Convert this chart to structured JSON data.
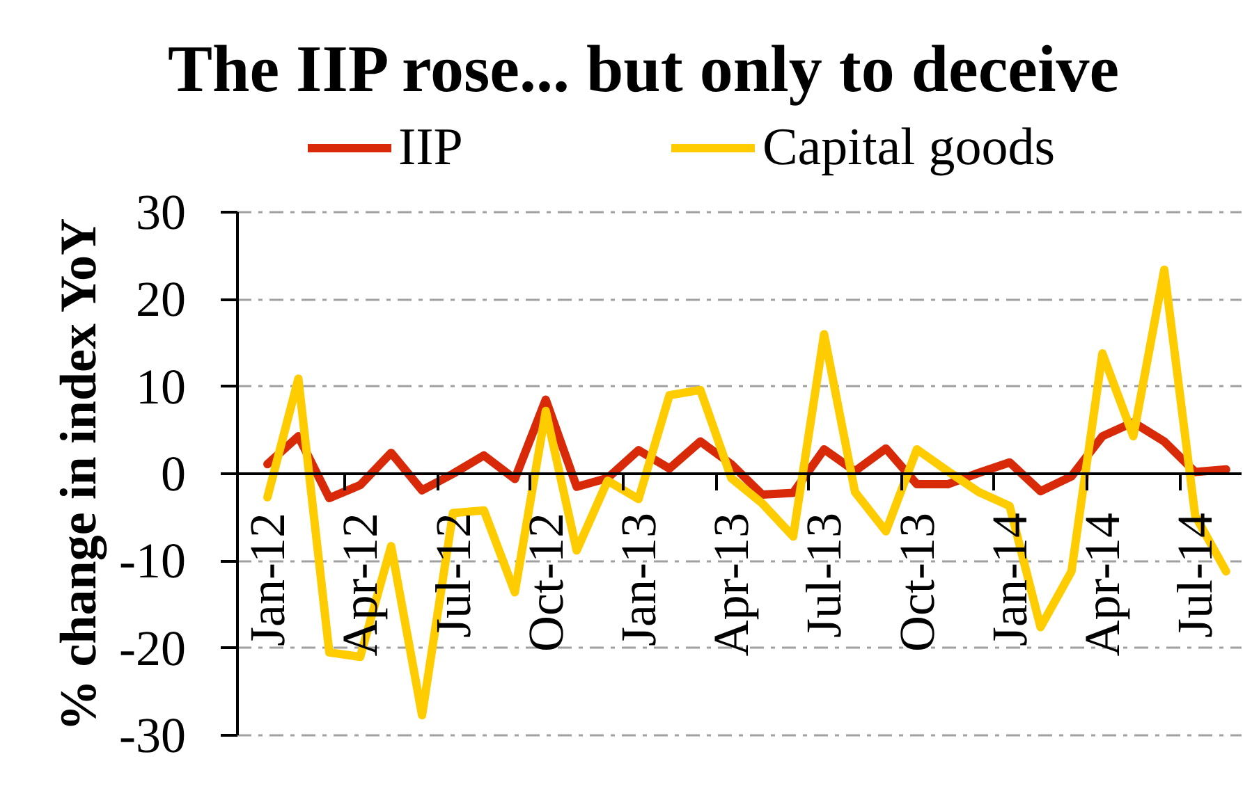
{
  "chart_data": {
    "type": "line",
    "title": "The IIP rose... but only to deceive",
    "ylabel": "% change in index YoY",
    "categories": [
      "Jan-12",
      null,
      null,
      "Apr-12",
      null,
      null,
      "Jul-12",
      null,
      null,
      "Oct-12",
      null,
      null,
      "Jan-13",
      null,
      null,
      "Apr-13",
      null,
      null,
      "Jul-13",
      null,
      null,
      "Oct-13",
      null,
      null,
      "Jan-14",
      null,
      null,
      "Apr-14",
      null,
      null,
      "Jul-14",
      null
    ],
    "series": [
      {
        "name": "IIP",
        "color": "#d82a08",
        "values": [
          1.1,
          4.3,
          -2.8,
          -1.3,
          2.4,
          -1.9,
          0.0,
          2.1,
          -0.6,
          8.5,
          -1.5,
          -0.5,
          2.7,
          0.6,
          3.7,
          1.1,
          -2.4,
          -2.2,
          2.8,
          0.3,
          2.9,
          -1.2,
          -1.2,
          0.1,
          1.3,
          -2.0,
          -0.3,
          4.3,
          5.9,
          3.7,
          0.2,
          0.5
        ]
      },
      {
        "name": "Capital goods",
        "color": "#ffcc00",
        "values": [
          -2.7,
          10.9,
          -20.5,
          -21,
          -8.3,
          -27.7,
          -4.5,
          -4.2,
          -13.6,
          7.2,
          -8.8,
          -0.8,
          -2.9,
          9.0,
          9.6,
          -0.5,
          -3.4,
          -7.2,
          16.0,
          -2.1,
          -6.6,
          2.8,
          0.3,
          -2.1,
          -3.7,
          -17.6,
          -11.2,
          13.8,
          4.3,
          23.4,
          -4.8,
          -11.2
        ]
      }
    ],
    "ylim": [
      -30,
      30
    ],
    "yticks": [
      -30,
      -20,
      -10,
      0,
      10,
      20,
      30
    ],
    "grid": "y",
    "legend": "top"
  }
}
